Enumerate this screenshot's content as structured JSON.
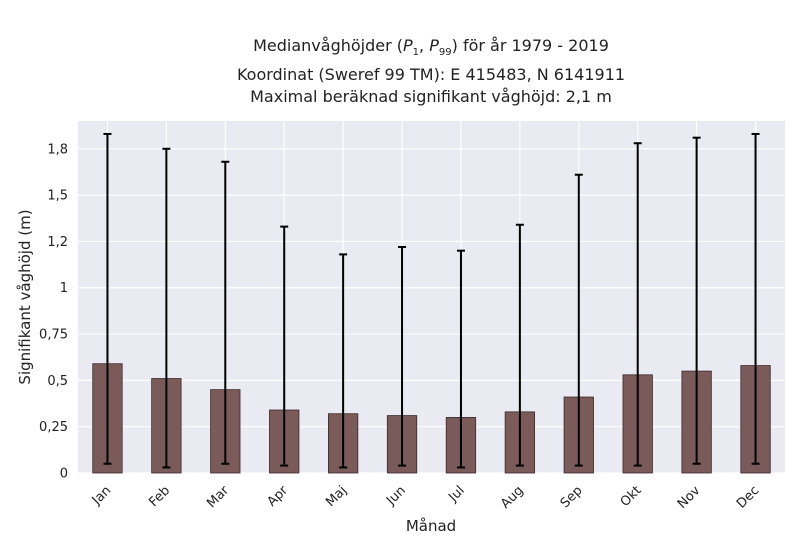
{
  "title": {
    "line1_prefix": "Medianvåghöjder (",
    "p1_base": "P",
    "p1_sub": "1",
    "sep": ", ",
    "p99_base": "P",
    "p99_sub": "99",
    "line1_suffix": ") för år 1979 - 2019",
    "line2": "Koordinat (Sweref 99 TM): E 415483, N 6141911",
    "line3": "Maximal beräknad signifikant våghöjd: 2,1 m"
  },
  "chart_data": {
    "type": "bar",
    "xlabel": "Månad",
    "ylabel": "Signifikant våghöjd (m)",
    "ylim": [
      0,
      1.9
    ],
    "yticks": [
      0,
      0.25,
      0.5,
      0.75,
      1,
      1.25,
      1.5,
      1.75
    ],
    "ytick_labels": [
      "0",
      "0,25",
      "0,5",
      "0,75",
      "1",
      "1,2",
      "1,5",
      "1,8"
    ],
    "grid": true,
    "bar_color": "#7b5a5a",
    "categories": [
      "Jan",
      "Feb",
      "Mar",
      "Apr",
      "Maj",
      "Jun",
      "Jul",
      "Aug",
      "Sep",
      "Okt",
      "Nov",
      "Dec"
    ],
    "values": [
      0.59,
      0.51,
      0.45,
      0.34,
      0.32,
      0.31,
      0.3,
      0.33,
      0.41,
      0.53,
      0.55,
      0.58
    ],
    "p1": [
      0.05,
      0.03,
      0.05,
      0.04,
      0.03,
      0.04,
      0.03,
      0.04,
      0.04,
      0.04,
      0.05,
      0.05
    ],
    "p99": [
      1.83,
      1.75,
      1.68,
      1.33,
      1.18,
      1.22,
      1.2,
      1.34,
      1.61,
      1.78,
      1.81,
      1.83
    ]
  }
}
